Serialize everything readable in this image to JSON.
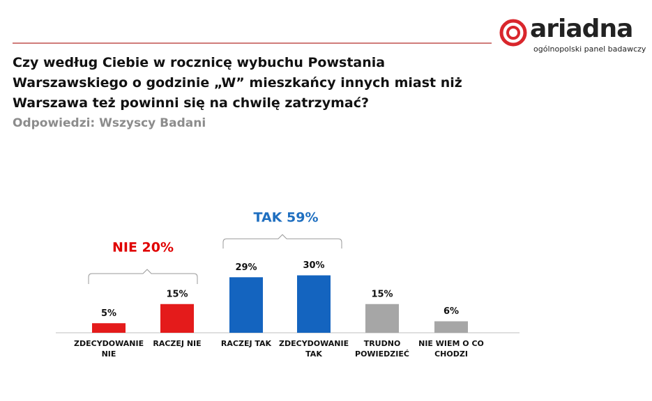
{
  "logo": {
    "name": "ariadna",
    "tagline": "ogólnopolski panel badawczy"
  },
  "chart_data": {
    "type": "bar",
    "title": "Czy według Ciebie w rocznicę wybuchu Powstania Warszawskiego o godzinie „W” mieszkańcy innych miast niż Warszawa też powinni się na chwilę zatrzymać?",
    "subtitle": "Odpowiedzi: Wszyscy Badani",
    "categories": [
      "ZDECYDOWANIE NIE",
      "RACZEJ NIE",
      "RACZEJ TAK",
      "ZDECYDOWANIE TAK",
      "TRUDNO POWIEDZIEĆ",
      "NIE WIEM O CO CHODZI"
    ],
    "values": [
      5,
      15,
      29,
      30,
      15,
      6
    ],
    "value_labels": [
      "5%",
      "15%",
      "29%",
      "30%",
      "15%",
      "6%"
    ],
    "colors": [
      "#e41b1b",
      "#e41b1b",
      "#1464bf",
      "#1464bf",
      "#a6a6a6",
      "#a6a6a6"
    ],
    "annotations": [
      {
        "text": "NIE 20%",
        "color": "#e00000"
      },
      {
        "text": "TAK 59%",
        "color": "#1f6fc0"
      }
    ]
  }
}
